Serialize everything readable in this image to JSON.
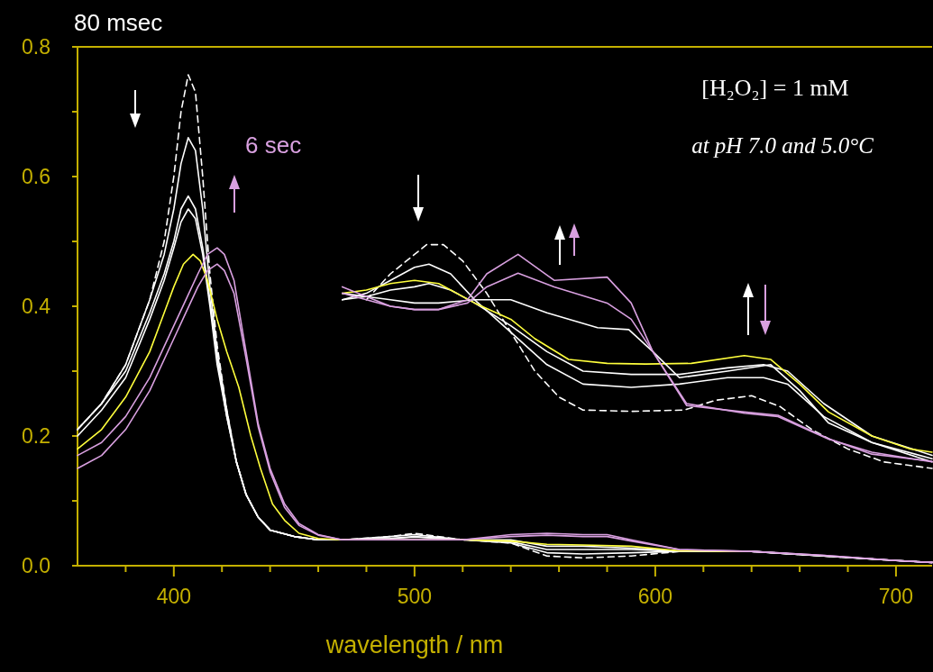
{
  "chart_data": {
    "type": "line",
    "xlabel": "wavelength / nm",
    "annotations": [
      "80 msec",
      "6 sec",
      "[H₂O₂] = 1 mM",
      "at pH 7.0 and 5.0°C"
    ],
    "xlim": [
      360,
      715
    ],
    "xticks": [
      {
        "value": 380,
        "label": null
      },
      400,
      {
        "value": 420,
        "label": null
      },
      {
        "value": 440,
        "label": null
      },
      {
        "value": 460,
        "label": null
      },
      {
        "value": 480,
        "label": null
      },
      500,
      {
        "value": 520,
        "label": null
      },
      {
        "value": 540,
        "label": null
      },
      {
        "value": 560,
        "label": null
      },
      {
        "value": 580,
        "label": null
      },
      600,
      {
        "value": 620,
        "label": null
      },
      {
        "value": 640,
        "label": null
      },
      {
        "value": 660,
        "label": null
      },
      {
        "value": 680,
        "label": null
      },
      700
    ],
    "ylim": [
      0,
      0.8
    ],
    "yticks": [
      {
        "value": 0,
        "label": "0.0"
      },
      {
        "value": 0.1,
        "label": null
      },
      {
        "value": 0.2,
        "label": "0.2"
      },
      {
        "value": 0.3,
        "label": null
      },
      {
        "value": 0.4,
        "label": "0.4"
      },
      {
        "value": 0.5,
        "label": null
      },
      {
        "value": 0.6,
        "label": "0.6"
      },
      {
        "value": 0.7,
        "label": null
      },
      {
        "value": 0.8,
        "label": "0.8"
      }
    ],
    "grid": false,
    "series": [
      {
        "color": "#ffffff",
        "line_style": "dashed",
        "x": [
          360,
          370,
          380,
          390,
          396,
          400,
          403,
          406,
          409,
          412,
          415,
          418,
          422,
          426,
          430,
          435,
          440,
          450,
          460,
          470,
          490,
          500,
          520,
          540,
          555,
          570,
          590,
          610,
          640,
          670,
          700,
          715
        ],
        "values": [
          0.21,
          0.25,
          0.31,
          0.41,
          0.5,
          0.6,
          0.7,
          0.757,
          0.73,
          0.6,
          0.45,
          0.34,
          0.24,
          0.16,
          0.11,
          0.075,
          0.055,
          0.045,
          0.04,
          0.04,
          0.045,
          0.05,
          0.04,
          0.035,
          0.015,
          0.012,
          0.015,
          0.022,
          0.022,
          0.015,
          0.008,
          0.005
        ]
      },
      {
        "color": "#ffffff",
        "line_style": "solid",
        "x": [
          360,
          370,
          380,
          390,
          396,
          400,
          403,
          406,
          409,
          412,
          415,
          418,
          422,
          426,
          430,
          435,
          440,
          450,
          460,
          470,
          490,
          500,
          520,
          540,
          555,
          570,
          590,
          610,
          640,
          670,
          700,
          715
        ],
        "values": [
          0.21,
          0.25,
          0.31,
          0.41,
          0.48,
          0.55,
          0.62,
          0.66,
          0.64,
          0.55,
          0.43,
          0.33,
          0.24,
          0.16,
          0.11,
          0.075,
          0.055,
          0.045,
          0.04,
          0.04,
          0.045,
          0.048,
          0.04,
          0.035,
          0.02,
          0.018,
          0.02,
          0.022,
          0.022,
          0.015,
          0.008,
          0.005
        ]
      },
      {
        "color": "#ffffff",
        "line_style": "solid",
        "x": [
          360,
          370,
          380,
          390,
          396,
          400,
          403,
          406,
          409,
          412,
          415,
          418,
          422,
          426,
          430,
          435,
          440,
          450,
          460,
          470,
          490,
          500,
          520,
          540,
          555,
          570,
          590,
          610,
          640,
          670,
          700,
          715
        ],
        "values": [
          0.21,
          0.25,
          0.3,
          0.39,
          0.45,
          0.5,
          0.55,
          0.57,
          0.55,
          0.49,
          0.41,
          0.32,
          0.23,
          0.16,
          0.11,
          0.075,
          0.055,
          0.045,
          0.04,
          0.04,
          0.042,
          0.045,
          0.04,
          0.037,
          0.025,
          0.025,
          0.025,
          0.022,
          0.022,
          0.015,
          0.008,
          0.005
        ]
      },
      {
        "color": "#ffffff",
        "line_style": "solid",
        "x": [
          360,
          370,
          380,
          390,
          396,
          400,
          403,
          406,
          409,
          412,
          415,
          418,
          422,
          426,
          430,
          435,
          440,
          450,
          460,
          470,
          490,
          500,
          520,
          540,
          555,
          570,
          590,
          610,
          640,
          670,
          700,
          715
        ],
        "values": [
          0.2,
          0.24,
          0.29,
          0.38,
          0.44,
          0.49,
          0.53,
          0.55,
          0.535,
          0.48,
          0.4,
          0.31,
          0.23,
          0.16,
          0.11,
          0.075,
          0.055,
          0.045,
          0.04,
          0.04,
          0.042,
          0.044,
          0.04,
          0.04,
          0.03,
          0.03,
          0.027,
          0.023,
          0.022,
          0.015,
          0.008,
          0.005
        ]
      },
      {
        "color": "#ffff3c",
        "line_style": "solid",
        "x": [
          360,
          370,
          380,
          390,
          396,
          400,
          404,
          408,
          411,
          414,
          418,
          422,
          427,
          432,
          436,
          441,
          446,
          452,
          460,
          470,
          490,
          500,
          520,
          540,
          555,
          570,
          590,
          610,
          640
        ],
        "values": [
          0.18,
          0.21,
          0.26,
          0.33,
          0.39,
          0.43,
          0.465,
          0.48,
          0.47,
          0.44,
          0.38,
          0.33,
          0.275,
          0.2,
          0.15,
          0.095,
          0.07,
          0.05,
          0.042,
          0.04,
          0.04,
          0.04,
          0.04,
          0.038,
          0.033,
          0.032,
          0.03,
          0.023,
          0.022
        ]
      },
      {
        "color": "#d9a0e0",
        "line_style": "solid",
        "x": [
          360,
          370,
          380,
          390,
          400,
          405,
          410,
          414,
          418,
          421,
          425,
          430,
          435,
          440,
          446,
          452,
          460,
          470,
          490,
          500,
          520,
          540,
          555,
          570,
          580,
          590,
          610,
          640,
          670,
          700,
          715
        ],
        "values": [
          0.17,
          0.19,
          0.23,
          0.29,
          0.37,
          0.41,
          0.45,
          0.48,
          0.49,
          0.48,
          0.44,
          0.33,
          0.22,
          0.15,
          0.095,
          0.065,
          0.048,
          0.04,
          0.04,
          0.04,
          0.04,
          0.048,
          0.05,
          0.048,
          0.048,
          0.04,
          0.025,
          0.022,
          0.016,
          0.008,
          0.005
        ]
      },
      {
        "color": "#d9a0e0",
        "line_style": "solid",
        "x": [
          360,
          370,
          380,
          390,
          400,
          405,
          410,
          414,
          418,
          421,
          425,
          430,
          435,
          440,
          446,
          452,
          460,
          470,
          490,
          500,
          520,
          540,
          555,
          570,
          580,
          590,
          610,
          640,
          670,
          700,
          715
        ],
        "values": [
          0.15,
          0.17,
          0.21,
          0.27,
          0.35,
          0.39,
          0.43,
          0.455,
          0.465,
          0.455,
          0.42,
          0.32,
          0.215,
          0.145,
          0.09,
          0.062,
          0.047,
          0.04,
          0.04,
          0.04,
          0.04,
          0.045,
          0.047,
          0.045,
          0.045,
          0.038,
          0.025,
          0.022,
          0.016,
          0.008,
          0.005
        ]
      },
      {
        "color": "#ffffff",
        "line_style": "dashed",
        "x": [
          480,
          490,
          500,
          505,
          512,
          520,
          530,
          540,
          550,
          560,
          570,
          590,
          612,
          625,
          640,
          652,
          665,
          680,
          695,
          715
        ],
        "values": [
          0.41,
          0.45,
          0.48,
          0.495,
          0.495,
          0.47,
          0.42,
          0.36,
          0.3,
          0.26,
          0.24,
          0.238,
          0.24,
          0.255,
          0.262,
          0.245,
          0.21,
          0.18,
          0.16,
          0.15
        ]
      },
      {
        "color": "#ffffff",
        "line_style": "solid",
        "x": [
          470,
          480,
          490,
          500,
          506,
          515,
          525,
          540,
          555,
          570,
          590,
          610,
          630,
          645,
          655,
          670,
          690,
          715
        ],
        "values": [
          0.41,
          0.42,
          0.44,
          0.46,
          0.465,
          0.45,
          0.41,
          0.36,
          0.31,
          0.28,
          0.275,
          0.28,
          0.29,
          0.29,
          0.28,
          0.23,
          0.19,
          0.16
        ]
      },
      {
        "color": "#ffffff",
        "line_style": "solid",
        "x": [
          470,
          480,
          490,
          500,
          506,
          515,
          525,
          540,
          555,
          570,
          590,
          610,
          630,
          645,
          655,
          670,
          690,
          715
        ],
        "values": [
          0.41,
          0.415,
          0.425,
          0.43,
          0.435,
          0.425,
          0.405,
          0.37,
          0.33,
          0.3,
          0.295,
          0.295,
          0.305,
          0.31,
          0.3,
          0.25,
          0.2,
          0.17
        ]
      },
      {
        "color": "#ffff3c",
        "line_style": "solid",
        "x": [
          470,
          480,
          490,
          500,
          510,
          525,
          540,
          550,
          564,
          580,
          596,
          615,
          637,
          648,
          660,
          672,
          690,
          706,
          715
        ],
        "values": [
          0.42,
          0.425,
          0.435,
          0.44,
          0.435,
          0.405,
          0.38,
          0.35,
          0.318,
          0.312,
          0.311,
          0.312,
          0.324,
          0.318,
          0.28,
          0.237,
          0.2,
          0.18,
          0.175
        ]
      },
      {
        "color": "#ffffff",
        "line_style": "solid",
        "x": [
          470,
          480,
          490,
          500,
          510,
          525,
          540,
          555,
          576,
          589,
          599,
          610,
          630,
          648,
          660,
          672,
          690,
          715
        ],
        "values": [
          0.42,
          0.415,
          0.41,
          0.405,
          0.405,
          0.41,
          0.41,
          0.39,
          0.367,
          0.364,
          0.33,
          0.29,
          0.3,
          0.31,
          0.27,
          0.22,
          0.19,
          0.165
        ]
      },
      {
        "color": "#d9a0e0",
        "line_style": "solid",
        "x": [
          470,
          480,
          490,
          500,
          510,
          522,
          530,
          543,
          558,
          580,
          590,
          599,
          613,
          637,
          651,
          672,
          690,
          715
        ],
        "values": [
          0.42,
          0.41,
          0.4,
          0.395,
          0.395,
          0.405,
          0.43,
          0.451,
          0.43,
          0.405,
          0.38,
          0.33,
          0.25,
          0.235,
          0.23,
          0.195,
          0.175,
          0.16
        ]
      },
      {
        "color": "#d9a0e0",
        "line_style": "solid",
        "x": [
          470,
          480,
          490,
          500,
          510,
          522,
          530,
          543,
          558,
          580,
          590,
          599,
          613,
          637,
          651,
          672,
          690,
          715
        ],
        "values": [
          0.43,
          0.415,
          0.4,
          0.395,
          0.395,
          0.41,
          0.45,
          0.48,
          0.44,
          0.445,
          0.405,
          0.33,
          0.247,
          0.237,
          0.232,
          0.196,
          0.172,
          0.161
        ]
      }
    ]
  }
}
